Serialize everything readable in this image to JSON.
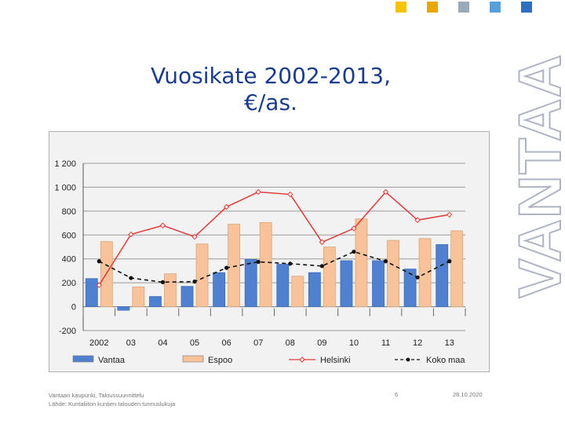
{
  "slide": {
    "title_line1": "Vuosikate 2002-2013,",
    "title_line2": "€/as.",
    "brand": "VANTAA",
    "footer_line1": "Vantaan kaupunki, Taloussuunnittelu",
    "footer_line2": "Lähde: Kuntaliiton kuntien talouden tunnuslukuja",
    "page_number": "6",
    "date": "28.10.2020",
    "brand_colors": [
      "#f5c400",
      "#e8a800",
      "#9aaab8",
      "#5aa0d8",
      "#2d6fc0"
    ]
  },
  "chart_data": {
    "type": "bar",
    "title": "",
    "categories": [
      "2002",
      "03",
      "04",
      "05",
      "06",
      "07",
      "08",
      "09",
      "10",
      "11",
      "12",
      "13"
    ],
    "ylim": [
      -200,
      1200
    ],
    "yticks": [
      "1 200",
      "1 000",
      "800",
      "600",
      "400",
      "200",
      "0",
      "-200"
    ],
    "ytick_values": [
      1200,
      1000,
      800,
      600,
      400,
      200,
      0,
      -200
    ],
    "grid": true,
    "legend_position": "bottom",
    "bar_series": [
      {
        "name": "Vantaa",
        "color": "#4f81d0",
        "values": [
          235,
          -30,
          85,
          170,
          285,
          395,
          355,
          285,
          385,
          385,
          315,
          520
        ]
      },
      {
        "name": "Espoo",
        "color": "#f8c39a",
        "values": [
          545,
          165,
          275,
          525,
          690,
          705,
          255,
          500,
          735,
          555,
          570,
          635
        ]
      }
    ],
    "line_series": [
      {
        "name": "Helsinki",
        "color": "#e03a3a",
        "style": "solid",
        "marker": "open-diamond",
        "values": [
          180,
          605,
          680,
          585,
          835,
          960,
          940,
          540,
          655,
          960,
          725,
          770
        ]
      },
      {
        "name": "Koko maa",
        "color": "#111111",
        "style": "dashed",
        "marker": "dot",
        "values": [
          380,
          240,
          205,
          210,
          325,
          375,
          360,
          340,
          460,
          380,
          245,
          380
        ]
      }
    ]
  }
}
